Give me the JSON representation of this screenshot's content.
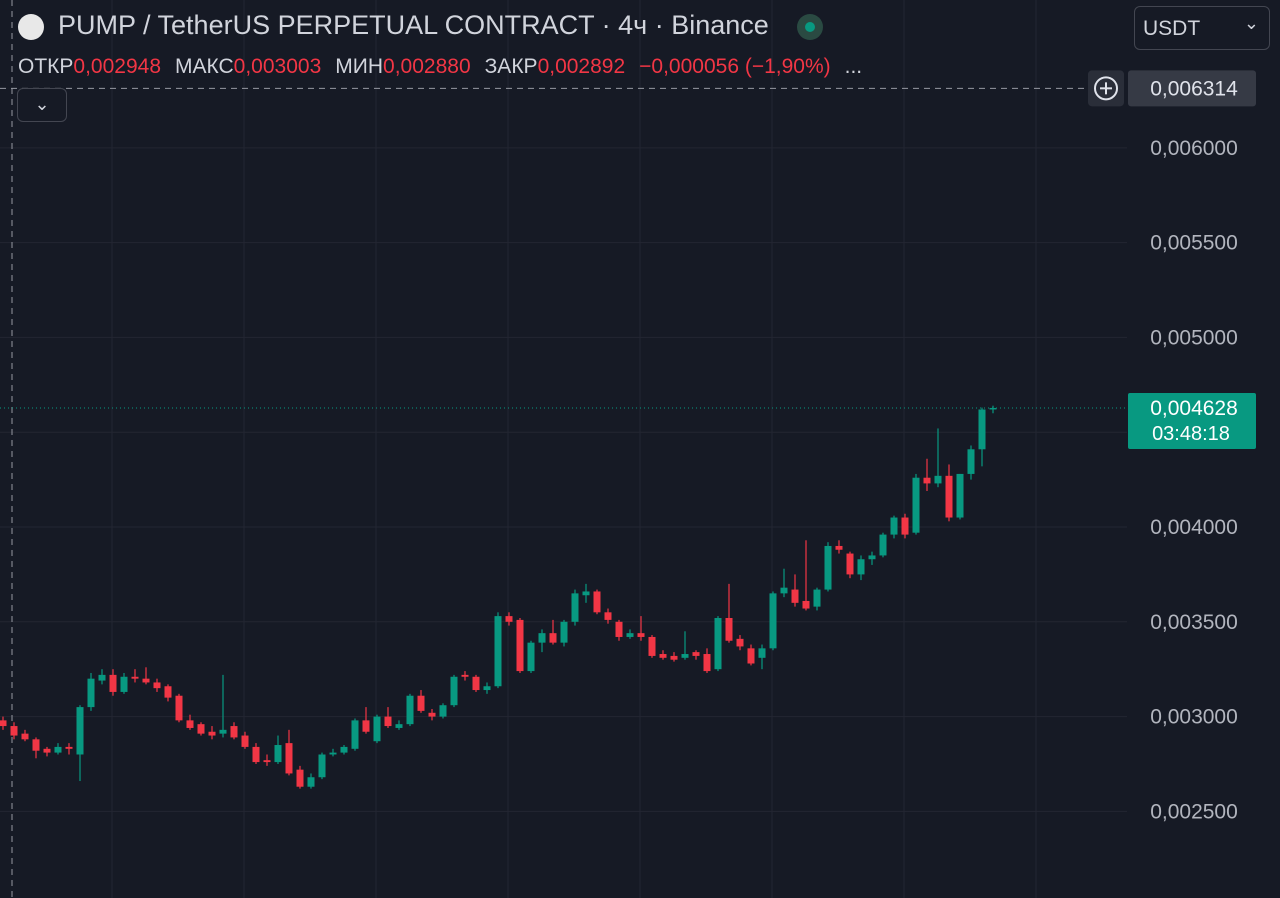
{
  "chart_data": {
    "type": "candlestick",
    "title": "PUMP / TetherUS PERPETUAL CONTRACT · 4ч · Binance",
    "quote": "USDT",
    "legend": {
      "open_label": "ОТКР",
      "open": "0,002948",
      "high_label": "МАКС",
      "high": "0,003003",
      "low_label": "МИН",
      "low": "0,002880",
      "close_label": "ЗАКР",
      "close": "0,002892",
      "change": "−0,000056 (−1,90%)",
      "more": "..."
    },
    "up_color": "#089981",
    "down_color": "#f23645",
    "ylim": [
      0.002043,
      0.00678
    ],
    "yticks": [
      {
        "value": 0.0025,
        "label": "0,002500"
      },
      {
        "value": 0.003,
        "label": "0,003000"
      },
      {
        "value": 0.0035,
        "label": "0,003500"
      },
      {
        "value": 0.004,
        "label": "0,004000"
      },
      {
        "value": 0.0045,
        "label": ""
      },
      {
        "value": 0.005,
        "label": "0,005000"
      },
      {
        "value": 0.0055,
        "label": "0,005500"
      },
      {
        "value": 0.006,
        "label": "0,006000"
      }
    ],
    "grid": true,
    "last_price": {
      "value": 0.004628,
      "label": "0,004628"
    },
    "countdown": "03:48:18",
    "crosshair_price": {
      "value": 0.006314,
      "label": "0,006314"
    },
    "ohlc": [
      [
        0.00298,
        0.003,
        0.00293,
        0.00295
      ],
      [
        0.00295,
        0.00297,
        0.00288,
        0.0029
      ],
      [
        0.00291,
        0.00293,
        0.00287,
        0.00288
      ],
      [
        0.00288,
        0.00289,
        0.00278,
        0.00282
      ],
      [
        0.00283,
        0.00284,
        0.00279,
        0.00281
      ],
      [
        0.00281,
        0.00286,
        0.0028,
        0.00284
      ],
      [
        0.00284,
        0.00286,
        0.0028,
        0.00283
      ],
      [
        0.0028,
        0.00306,
        0.00266,
        0.00305
      ],
      [
        0.00305,
        0.00323,
        0.00303,
        0.0032
      ],
      [
        0.00319,
        0.00325,
        0.00317,
        0.00322
      ],
      [
        0.00322,
        0.00325,
        0.00311,
        0.00313
      ],
      [
        0.00313,
        0.00323,
        0.00312,
        0.00321
      ],
      [
        0.00321,
        0.00325,
        0.00318,
        0.0032
      ],
      [
        0.0032,
        0.00326,
        0.00317,
        0.00318
      ],
      [
        0.00318,
        0.0032,
        0.00313,
        0.00315
      ],
      [
        0.00316,
        0.00317,
        0.00308,
        0.0031
      ],
      [
        0.00311,
        0.00312,
        0.00297,
        0.00298
      ],
      [
        0.00298,
        0.00301,
        0.00293,
        0.00294
      ],
      [
        0.00296,
        0.00297,
        0.0029,
        0.00291
      ],
      [
        0.00292,
        0.00295,
        0.00288,
        0.0029
      ],
      [
        0.00291,
        0.00322,
        0.00289,
        0.00293
      ],
      [
        0.00295,
        0.00297,
        0.00288,
        0.00289
      ],
      [
        0.0029,
        0.00292,
        0.00283,
        0.00284
      ],
      [
        0.00284,
        0.00286,
        0.00275,
        0.00276
      ],
      [
        0.00277,
        0.0028,
        0.00274,
        0.00276
      ],
      [
        0.00276,
        0.0029,
        0.00275,
        0.00285
      ],
      [
        0.00286,
        0.00293,
        0.00269,
        0.0027
      ],
      [
        0.00272,
        0.00274,
        0.00262,
        0.00263
      ],
      [
        0.00263,
        0.0027,
        0.00262,
        0.00268
      ],
      [
        0.00268,
        0.00281,
        0.00267,
        0.0028
      ],
      [
        0.0028,
        0.00283,
        0.00279,
        0.00281
      ],
      [
        0.00281,
        0.00285,
        0.0028,
        0.00284
      ],
      [
        0.00283,
        0.00299,
        0.00282,
        0.00298
      ],
      [
        0.00298,
        0.00305,
        0.00291,
        0.00292
      ],
      [
        0.00287,
        0.00301,
        0.00286,
        0.003
      ],
      [
        0.003,
        0.00305,
        0.00294,
        0.00295
      ],
      [
        0.00294,
        0.00298,
        0.00293,
        0.00296
      ],
      [
        0.00296,
        0.00312,
        0.00295,
        0.00311
      ],
      [
        0.00311,
        0.00314,
        0.00302,
        0.00303
      ],
      [
        0.00302,
        0.00304,
        0.00298,
        0.003
      ],
      [
        0.003,
        0.00307,
        0.00299,
        0.00306
      ],
      [
        0.00306,
        0.00322,
        0.00305,
        0.00321
      ],
      [
        0.00322,
        0.00324,
        0.00319,
        0.00321
      ],
      [
        0.00321,
        0.00322,
        0.00313,
        0.00314
      ],
      [
        0.00314,
        0.00318,
        0.00312,
        0.00316
      ],
      [
        0.00316,
        0.00355,
        0.00315,
        0.00353
      ],
      [
        0.00353,
        0.00355,
        0.00348,
        0.0035
      ],
      [
        0.00351,
        0.00352,
        0.00323,
        0.00324
      ],
      [
        0.00324,
        0.0034,
        0.00323,
        0.00339
      ],
      [
        0.00339,
        0.00346,
        0.00334,
        0.00344
      ],
      [
        0.00344,
        0.00351,
        0.00338,
        0.00339
      ],
      [
        0.00339,
        0.00351,
        0.00337,
        0.0035
      ],
      [
        0.0035,
        0.00367,
        0.00348,
        0.00365
      ],
      [
        0.00364,
        0.0037,
        0.0036,
        0.00366
      ],
      [
        0.00366,
        0.00367,
        0.00354,
        0.00355
      ],
      [
        0.00355,
        0.00357,
        0.00349,
        0.00351
      ],
      [
        0.0035,
        0.00351,
        0.0034,
        0.00342
      ],
      [
        0.00342,
        0.00346,
        0.00341,
        0.00344
      ],
      [
        0.00344,
        0.00353,
        0.0034,
        0.00342
      ],
      [
        0.00342,
        0.00343,
        0.00331,
        0.00332
      ],
      [
        0.00333,
        0.00335,
        0.0033,
        0.00331
      ],
      [
        0.00332,
        0.00334,
        0.00329,
        0.0033
      ],
      [
        0.00331,
        0.00345,
        0.0033,
        0.00333
      ],
      [
        0.00334,
        0.00335,
        0.0033,
        0.00332
      ],
      [
        0.00333,
        0.00336,
        0.00323,
        0.00324
      ],
      [
        0.00325,
        0.00353,
        0.00324,
        0.00352
      ],
      [
        0.00352,
        0.0037,
        0.00339,
        0.0034
      ],
      [
        0.00341,
        0.00343,
        0.00335,
        0.00337
      ],
      [
        0.00336,
        0.00338,
        0.00327,
        0.00328
      ],
      [
        0.00331,
        0.00338,
        0.00325,
        0.00336
      ],
      [
        0.00336,
        0.00366,
        0.00335,
        0.00365
      ],
      [
        0.00365,
        0.00378,
        0.00363,
        0.00368
      ],
      [
        0.00367,
        0.00375,
        0.00358,
        0.0036
      ],
      [
        0.00361,
        0.00393,
        0.00356,
        0.00357
      ],
      [
        0.00358,
        0.00368,
        0.00356,
        0.00367
      ],
      [
        0.00367,
        0.00392,
        0.00366,
        0.0039
      ],
      [
        0.0039,
        0.00393,
        0.00386,
        0.00388
      ],
      [
        0.00386,
        0.00387,
        0.00373,
        0.00375
      ],
      [
        0.00375,
        0.00385,
        0.00372,
        0.00383
      ],
      [
        0.00383,
        0.00387,
        0.0038,
        0.00385
      ],
      [
        0.00385,
        0.00397,
        0.00384,
        0.00396
      ],
      [
        0.00396,
        0.00406,
        0.00394,
        0.00405
      ],
      [
        0.00405,
        0.00407,
        0.00394,
        0.00396
      ],
      [
        0.00397,
        0.00428,
        0.00396,
        0.00426
      ],
      [
        0.00426,
        0.00436,
        0.00419,
        0.00423
      ],
      [
        0.00423,
        0.00452,
        0.00421,
        0.00427
      ],
      [
        0.00427,
        0.00433,
        0.00403,
        0.00405
      ],
      [
        0.00405,
        0.00428,
        0.00404,
        0.00428
      ],
      [
        0.00428,
        0.00443,
        0.00425,
        0.00441
      ],
      [
        0.00441,
        0.00463,
        0.00432,
        0.00462
      ],
      [
        0.00462,
        0.00464,
        0.0046,
        0.004628
      ]
    ]
  }
}
